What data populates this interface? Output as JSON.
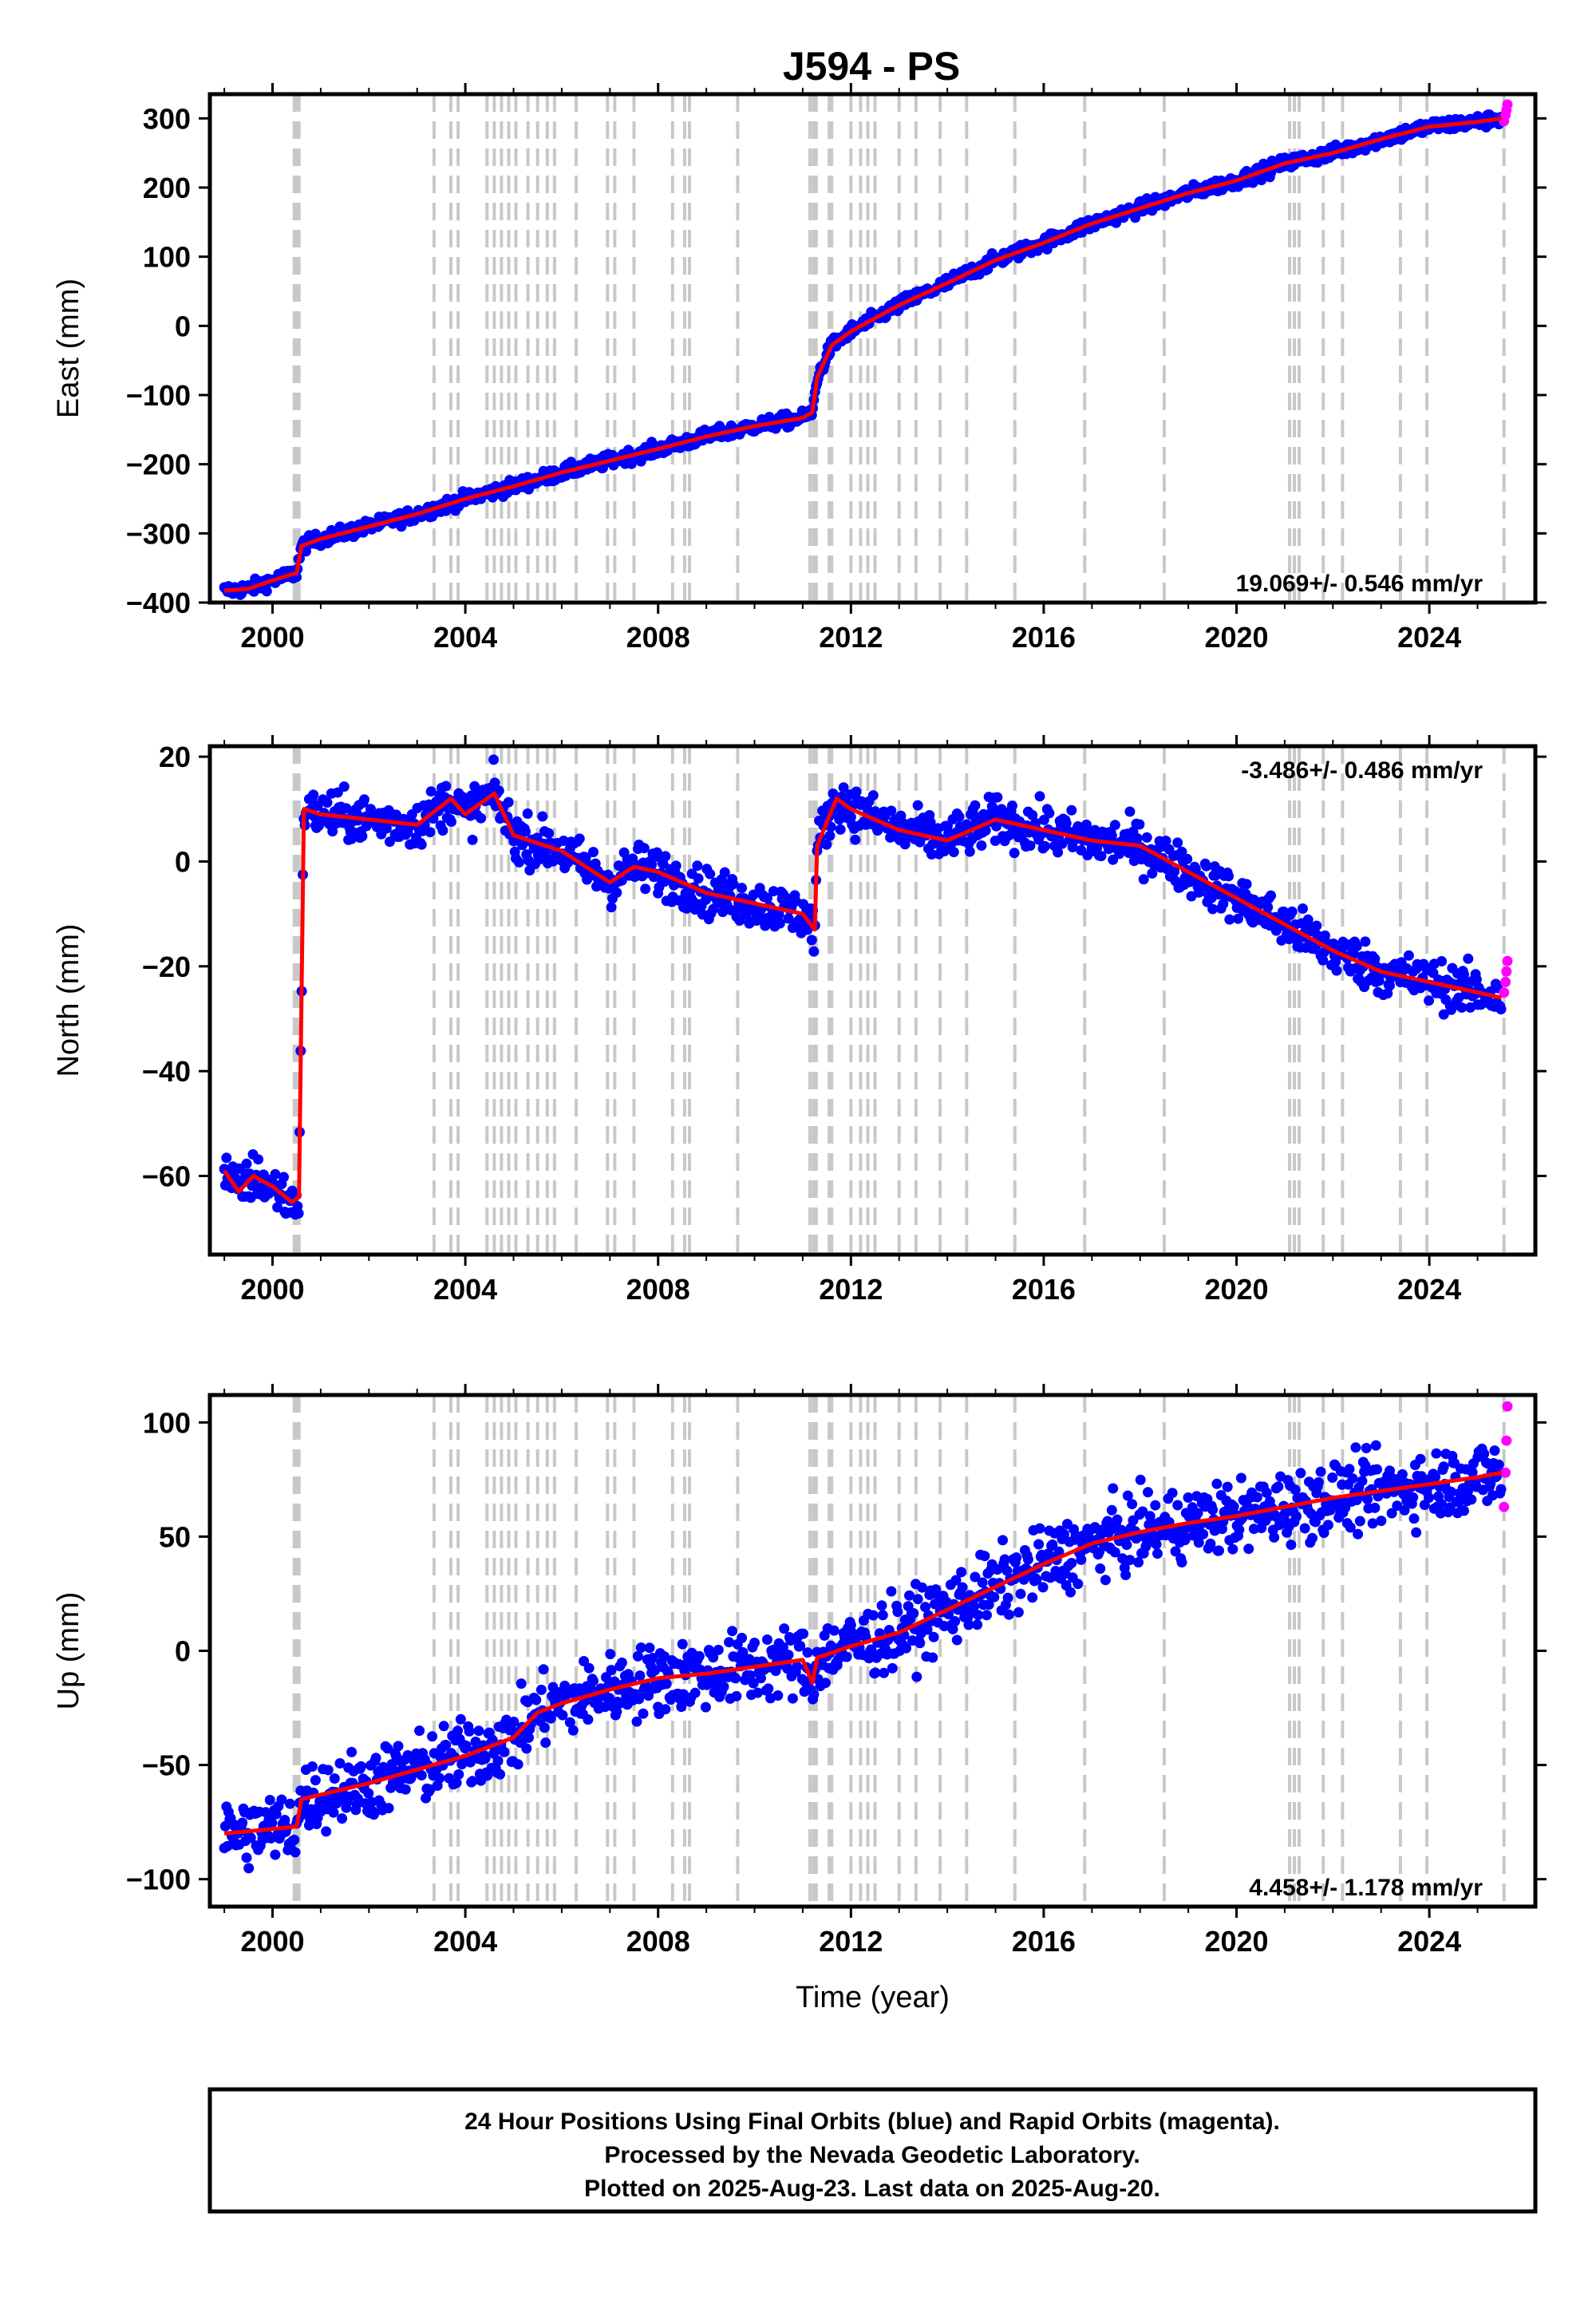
{
  "chart_data": [
    {
      "type": "scatter",
      "title": "J594 - PS",
      "xlabel": "",
      "ylabel": "East (mm)",
      "xlim": [
        1998.7,
        2026.2
      ],
      "ylim": [
        -400,
        335
      ],
      "xticks": [
        2000,
        2004,
        2008,
        2012,
        2016,
        2020,
        2024
      ],
      "xtick_labels": [
        "2000",
        "2004",
        "2008",
        "2012",
        "2016",
        "2020",
        "2024"
      ],
      "yticks": [
        -400,
        -300,
        -200,
        -100,
        0,
        100,
        200,
        300
      ],
      "ytick_labels": [
        "−400",
        "−300",
        "−200",
        "−100",
        "0",
        "100",
        "200",
        "300"
      ],
      "rate_label": "19.069+/- 0.546 mm/yr",
      "rate_position": "bottom-right",
      "series": [
        {
          "name": "Final Orbits",
          "color": "#0000ff",
          "role": "points",
          "x": [
            1999.0,
            1999.5,
            2000.0,
            2000.5,
            2000.6,
            2001.0,
            2002.0,
            2003.0,
            2004.0,
            2005.0,
            2006.0,
            2007.0,
            2008.0,
            2009.0,
            2010.0,
            2011.0,
            2011.2,
            2011.3,
            2011.6,
            2012.0,
            2013.0,
            2014.0,
            2015.0,
            2016.0,
            2017.0,
            2018.0,
            2019.0,
            2020.0,
            2021.0,
            2022.0,
            2023.0,
            2024.0,
            2025.0,
            2025.5
          ],
          "y": [
            -383,
            -380,
            -368,
            -357,
            -318,
            -308,
            -290,
            -272,
            -250,
            -232,
            -212,
            -195,
            -178,
            -160,
            -145,
            -133,
            -125,
            -75,
            -28,
            -8,
            30,
            62,
            95,
            120,
            148,
            170,
            192,
            210,
            235,
            250,
            270,
            288,
            295,
            300
          ]
        },
        {
          "name": "Model",
          "color": "#ff0000",
          "role": "line",
          "x": [
            1999.0,
            1999.5,
            2000.0,
            2000.5,
            2000.6,
            2001.0,
            2002.0,
            2003.0,
            2004.0,
            2005.0,
            2006.0,
            2007.0,
            2008.0,
            2009.0,
            2010.0,
            2011.0,
            2011.2,
            2011.3,
            2011.6,
            2012.0,
            2013.0,
            2014.0,
            2015.0,
            2016.0,
            2017.0,
            2018.0,
            2019.0,
            2020.0,
            2021.0,
            2022.0,
            2023.0,
            2024.0,
            2025.0,
            2025.5
          ],
          "y": [
            -383,
            -380,
            -368,
            -357,
            -318,
            -308,
            -290,
            -272,
            -250,
            -232,
            -212,
            -195,
            -178,
            -160,
            -145,
            -133,
            -125,
            -75,
            -28,
            -8,
            30,
            62,
            95,
            120,
            148,
            170,
            192,
            210,
            235,
            250,
            270,
            288,
            295,
            300
          ]
        },
        {
          "name": "Rapid Orbits",
          "color": "#ff00ff",
          "role": "points",
          "x": [
            2025.55,
            2025.58,
            2025.6,
            2025.62
          ],
          "y": [
            296,
            305,
            312,
            320
          ]
        }
      ]
    },
    {
      "type": "scatter",
      "title": "",
      "xlabel": "",
      "ylabel": "North (mm)",
      "xlim": [
        1998.7,
        2026.2
      ],
      "ylim": [
        -75,
        22
      ],
      "xticks": [
        2000,
        2004,
        2008,
        2012,
        2016,
        2020,
        2024
      ],
      "xtick_labels": [
        "2000",
        "2004",
        "2008",
        "2012",
        "2016",
        "2020",
        "2024"
      ],
      "yticks": [
        -60,
        -40,
        -20,
        0,
        20
      ],
      "ytick_labels": [
        "−60",
        "−40",
        "−20",
        "0",
        "20"
      ],
      "rate_label": "-3.486+/- 0.486 mm/yr",
      "rate_position": "top-right",
      "series": [
        {
          "name": "Final Orbits",
          "color": "#0000ff",
          "role": "points",
          "x": [
            1999.0,
            1999.3,
            1999.6,
            2000.0,
            2000.4,
            2000.55,
            2000.65,
            2001.0,
            2002.0,
            2003.0,
            2003.7,
            2004.0,
            2004.6,
            2005.0,
            2006.0,
            2007.0,
            2007.5,
            2008.0,
            2009.0,
            2010.0,
            2011.0,
            2011.25,
            2011.3,
            2011.7,
            2012.0,
            2013.0,
            2014.0,
            2015.0,
            2016.0,
            2017.0,
            2018.0,
            2019.0,
            2020.0,
            2021.0,
            2022.0,
            2023.0,
            2024.0,
            2025.0,
            2025.5
          ],
          "y": [
            -59,
            -63,
            -60,
            -62,
            -65,
            -64,
            10,
            9,
            8,
            7,
            12,
            9,
            13,
            5,
            2,
            -4,
            -1,
            -2,
            -6,
            -8,
            -10,
            -13,
            3,
            12,
            10,
            6,
            4,
            8,
            6,
            4,
            3,
            -2,
            -7,
            -12,
            -17,
            -21,
            -23,
            -25,
            -26
          ]
        },
        {
          "name": "Model",
          "color": "#ff0000",
          "role": "line",
          "x": [
            1999.0,
            1999.3,
            1999.6,
            2000.0,
            2000.4,
            2000.55,
            2000.65,
            2001.0,
            2002.0,
            2003.0,
            2003.7,
            2004.0,
            2004.6,
            2005.0,
            2006.0,
            2007.0,
            2007.5,
            2008.0,
            2009.0,
            2010.0,
            2011.0,
            2011.25,
            2011.3,
            2011.7,
            2012.0,
            2013.0,
            2014.0,
            2015.0,
            2016.0,
            2017.0,
            2018.0,
            2019.0,
            2020.0,
            2021.0,
            2022.0,
            2023.0,
            2024.0,
            2025.0,
            2025.5
          ],
          "y": [
            -59,
            -63,
            -60,
            -62,
            -65,
            -64,
            10,
            9,
            8,
            7,
            12,
            9,
            13,
            5,
            2,
            -4,
            -1,
            -2,
            -6,
            -8,
            -10,
            -13,
            3,
            12,
            10,
            6,
            4,
            8,
            6,
            4,
            3,
            -2,
            -7,
            -12,
            -17,
            -21,
            -23,
            -25,
            -26
          ]
        },
        {
          "name": "Rapid Orbits",
          "color": "#ff00ff",
          "role": "points",
          "x": [
            2025.55,
            2025.58,
            2025.6,
            2025.62
          ],
          "y": [
            -25,
            -23,
            -21,
            -19
          ]
        }
      ]
    },
    {
      "type": "scatter",
      "title": "",
      "xlabel": "Time (year)",
      "ylabel": "Up (mm)",
      "xlim": [
        1998.7,
        2026.2
      ],
      "ylim": [
        -112,
        112
      ],
      "xticks": [
        2000,
        2004,
        2008,
        2012,
        2016,
        2020,
        2024
      ],
      "xtick_labels": [
        "2000",
        "2004",
        "2008",
        "2012",
        "2016",
        "2020",
        "2024"
      ],
      "yticks": [
        -100,
        -50,
        0,
        50,
        100
      ],
      "ytick_labels": [
        "−100",
        "−50",
        "0",
        "50",
        "100"
      ],
      "rate_label": "4.458+/- 1.178 mm/yr",
      "rate_position": "bottom-right",
      "series": [
        {
          "name": "Final Orbits",
          "color": "#0000ff",
          "role": "points",
          "x": [
            1999.0,
            1999.5,
            2000.0,
            2000.5,
            2000.6,
            2001.0,
            2002.0,
            2003.0,
            2004.0,
            2005.0,
            2005.5,
            2006.0,
            2007.0,
            2008.0,
            2009.0,
            2010.0,
            2011.0,
            2011.2,
            2011.3,
            2012.0,
            2013.0,
            2014.0,
            2015.0,
            2016.0,
            2017.0,
            2018.0,
            2019.0,
            2020.0,
            2021.0,
            2022.0,
            2023.0,
            2024.0,
            2025.0,
            2025.5
          ],
          "y": [
            -80,
            -79,
            -78,
            -77,
            -65,
            -63,
            -58,
            -52,
            -46,
            -38,
            -27,
            -23,
            -17,
            -12,
            -10,
            -7,
            -4,
            -14,
            -3,
            2,
            8,
            18,
            28,
            38,
            47,
            52,
            56,
            59,
            63,
            67,
            70,
            73,
            76,
            78
          ]
        },
        {
          "name": "Model",
          "color": "#ff0000",
          "role": "line",
          "x": [
            1999.0,
            1999.5,
            2000.0,
            2000.5,
            2000.6,
            2001.0,
            2002.0,
            2003.0,
            2004.0,
            2005.0,
            2005.5,
            2006.0,
            2007.0,
            2008.0,
            2009.0,
            2010.0,
            2011.0,
            2011.2,
            2011.3,
            2012.0,
            2013.0,
            2014.0,
            2015.0,
            2016.0,
            2017.0,
            2018.0,
            2019.0,
            2020.0,
            2021.0,
            2022.0,
            2023.0,
            2024.0,
            2025.0,
            2025.5
          ],
          "y": [
            -80,
            -79,
            -78,
            -77,
            -65,
            -63,
            -58,
            -52,
            -46,
            -38,
            -27,
            -23,
            -17,
            -12,
            -10,
            -7,
            -4,
            -14,
            -3,
            2,
            8,
            18,
            28,
            38,
            47,
            52,
            56,
            59,
            63,
            67,
            70,
            73,
            76,
            78
          ]
        },
        {
          "name": "Rapid Orbits",
          "color": "#ff00ff",
          "role": "points",
          "x": [
            2025.55,
            2025.58,
            2025.6,
            2025.62
          ],
          "y": [
            63,
            78,
            92,
            107
          ]
        }
      ]
    }
  ],
  "event_lines_years": [
    2000.45,
    2000.5,
    2000.55,
    2003.35,
    2003.7,
    2003.85,
    2004.45,
    2004.6,
    2004.75,
    2004.9,
    2005.05,
    2005.3,
    2005.5,
    2005.7,
    2005.85,
    2006.3,
    2006.95,
    2007.1,
    2007.5,
    2008.3,
    2008.55,
    2008.65,
    2009.65,
    2011.15,
    2011.22,
    2011.28,
    2011.55,
    2011.6,
    2012.0,
    2012.2,
    2012.35,
    2012.5,
    2013.0,
    2013.35,
    2013.85,
    2014.4,
    2015.4,
    2016.85,
    2018.5,
    2021.1,
    2021.2,
    2021.3,
    2021.8,
    2022.2,
    2023.4,
    2023.95,
    2025.55
  ],
  "footer": {
    "line1": "24 Hour Positions Using Final Orbits (blue) and Rapid Orbits (magenta).",
    "line2": "Processed by the Nevada Geodetic Laboratory.",
    "line3": "Plotted on 2025-Aug-23. Last data on 2025-Aug-20."
  },
  "colors": {
    "final_orbits": "#0000ff",
    "rapid_orbits": "#ff00ff",
    "model": "#ff0000",
    "event_lines": "#c8c8c8",
    "frame": "#000000"
  }
}
